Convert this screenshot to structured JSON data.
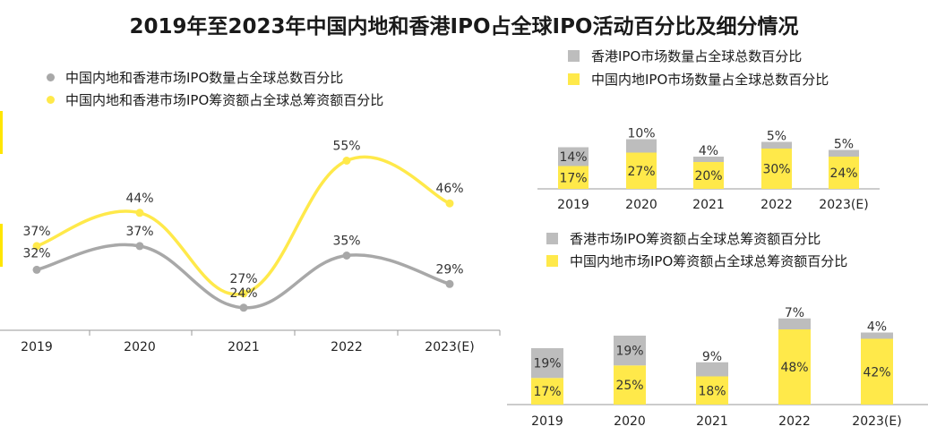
{
  "title": "2019年至2023年中国内地和香港IPO占全球IPO活动百分比及细分情况",
  "colors": {
    "gray_line": "#a8a8a8",
    "yellow_line": "#ffe94a",
    "gray_bar": "#bdbdbd",
    "yellow_bar": "#ffe94a",
    "axis": "#999999"
  },
  "legends": {
    "line": [
      {
        "label": "中国内地和香港市场IPO数量占全球总数百分比",
        "color": "#a8a8a8"
      },
      {
        "label": "中国内地和香港市场IPO筹资额占全球总筹资额百分比",
        "color": "#ffe94a"
      }
    ],
    "bar_top": [
      {
        "label": "香港IPO市场数量占全球总数百分比",
        "color": "#bdbdbd"
      },
      {
        "label": "中国内地IPO市场数量占全球总数百分比",
        "color": "#ffe94a"
      }
    ],
    "bar_bottom": [
      {
        "label": "香港市场IPO筹资额占全球总筹资额百分比",
        "color": "#bdbdbd"
      },
      {
        "label": "中国内地市场IPO筹资额占全球总筹资额百分比",
        "color": "#ffe94a"
      }
    ]
  },
  "chart_data": [
    {
      "type": "line",
      "categories": [
        "2019",
        "2020",
        "2021",
        "2022",
        "2023(E)"
      ],
      "series": [
        {
          "name": "中国内地和香港市场IPO数量占全球总数百分比",
          "values": [
            32,
            37,
            24,
            35,
            29
          ],
          "labels": [
            "32%",
            "37%",
            "24%",
            "35%",
            "29%"
          ]
        },
        {
          "name": "中国内地和香港市场IPO筹资额占全球总筹资额百分比",
          "values": [
            37,
            44,
            27,
            55,
            46
          ],
          "labels": [
            "37%",
            "44%",
            "27%",
            "55%",
            "46%"
          ]
        }
      ]
    },
    {
      "type": "bar",
      "stacked": true,
      "categories": [
        "2019",
        "2020",
        "2021",
        "2022",
        "2023(E)"
      ],
      "series": [
        {
          "name": "中国内地IPO市场数量占全球总数百分比",
          "values": [
            17,
            27,
            20,
            30,
            24
          ],
          "labels": [
            "17%",
            "27%",
            "20%",
            "30%",
            "24%"
          ]
        },
        {
          "name": "香港IPO市场数量占全球总数百分比",
          "values": [
            14,
            10,
            4,
            5,
            5
          ],
          "labels": [
            "14%",
            "10%",
            "4%",
            "5%",
            "5%"
          ]
        }
      ]
    },
    {
      "type": "bar",
      "stacked": true,
      "categories": [
        "2019",
        "2020",
        "2021",
        "2022",
        "2023(E)"
      ],
      "series": [
        {
          "name": "中国内地市场IPO筹资额占全球总筹资额百分比",
          "values": [
            17,
            25,
            18,
            48,
            42
          ],
          "labels": [
            "17%",
            "25%",
            "18%",
            "48%",
            "42%"
          ]
        },
        {
          "name": "香港市场IPO筹资额占全球总筹资额百分比",
          "values": [
            19,
            19,
            9,
            7,
            4
          ],
          "labels": [
            "19%",
            "19%",
            "9%",
            "7%",
            "4%"
          ]
        }
      ]
    }
  ]
}
